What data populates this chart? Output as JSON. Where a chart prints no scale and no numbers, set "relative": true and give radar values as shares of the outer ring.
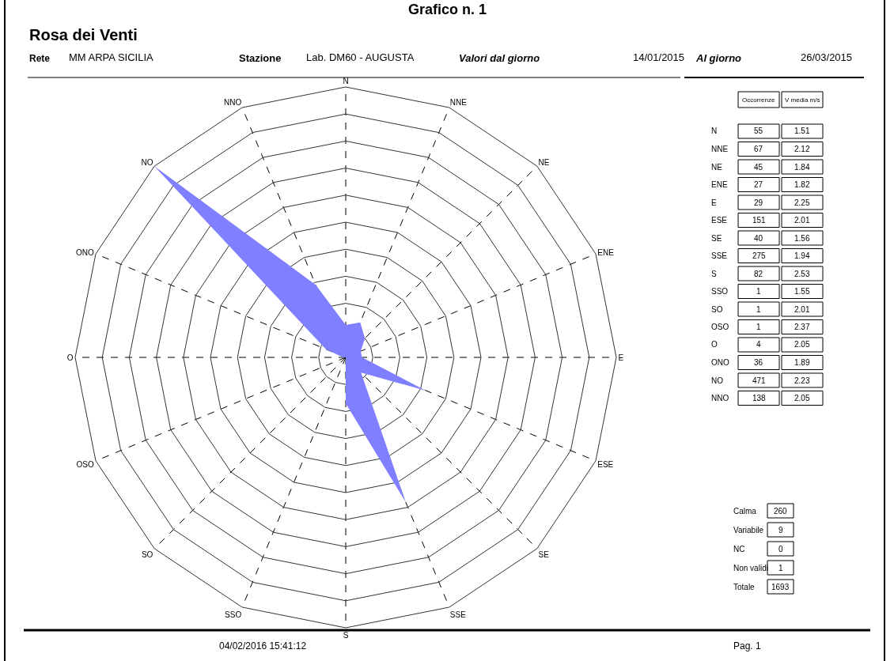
{
  "chart_data": [
    {
      "type": "radar",
      "title": "Rosa dei Venti",
      "categories": [
        "N",
        "NNE",
        "NE",
        "ENE",
        "E",
        "ESE",
        "SE",
        "SSE",
        "S",
        "SSO",
        "SO",
        "OSO",
        "O",
        "ONO",
        "NO",
        "NNO"
      ],
      "relative": true,
      "series": [
        {
          "color": "#7f7fff",
          "values": [
            0.12,
            0.14,
            0.1,
            0.06,
            0.06,
            0.32,
            0.08,
            0.58,
            0.17,
            0,
            0,
            0,
            0.01,
            0.08,
            1,
            0.29
          ]
        }
      ],
      "grid": true,
      "annotations": [
        "Grafico n. 1",
        "Rete",
        "MM ARPA SICILIA",
        "Stazione",
        "Lab. DM60 - AUGUSTA",
        "Valori dal giorno",
        "14/01/2015",
        "Al giorno",
        "26/03/2015",
        "04/02/2016 15:41:12",
        "Pag. 1"
      ]
    },
    {
      "type": "other",
      "data_labels": true,
      "categories": [
        "N",
        "NNE",
        "NE",
        "ENE",
        "E",
        "ESE",
        "SE",
        "SSE",
        "S",
        "SSO",
        "SO",
        "OSO",
        "O",
        "ONO",
        "NO",
        "NNO"
      ],
      "series": [
        {
          "name": "Occorrenze",
          "values": [
            55,
            67,
            45,
            27,
            29,
            151,
            40,
            275,
            82,
            1,
            1,
            1,
            4,
            36,
            471,
            138
          ]
        },
        {
          "name": "V media m/s",
          "values": [
            1.51,
            2.12,
            1.84,
            1.82,
            2.25,
            2.01,
            1.56,
            1.94,
            2.53,
            1.55,
            2.01,
            2.37,
            2.05,
            1.89,
            2.23,
            2.05
          ]
        }
      ]
    },
    {
      "type": "other",
      "data_labels": true,
      "categories": [
        "Calma",
        "Variabile",
        "NC",
        "Non validi",
        "Totale"
      ],
      "values": [
        260,
        9,
        0,
        1,
        1693
      ]
    }
  ]
}
